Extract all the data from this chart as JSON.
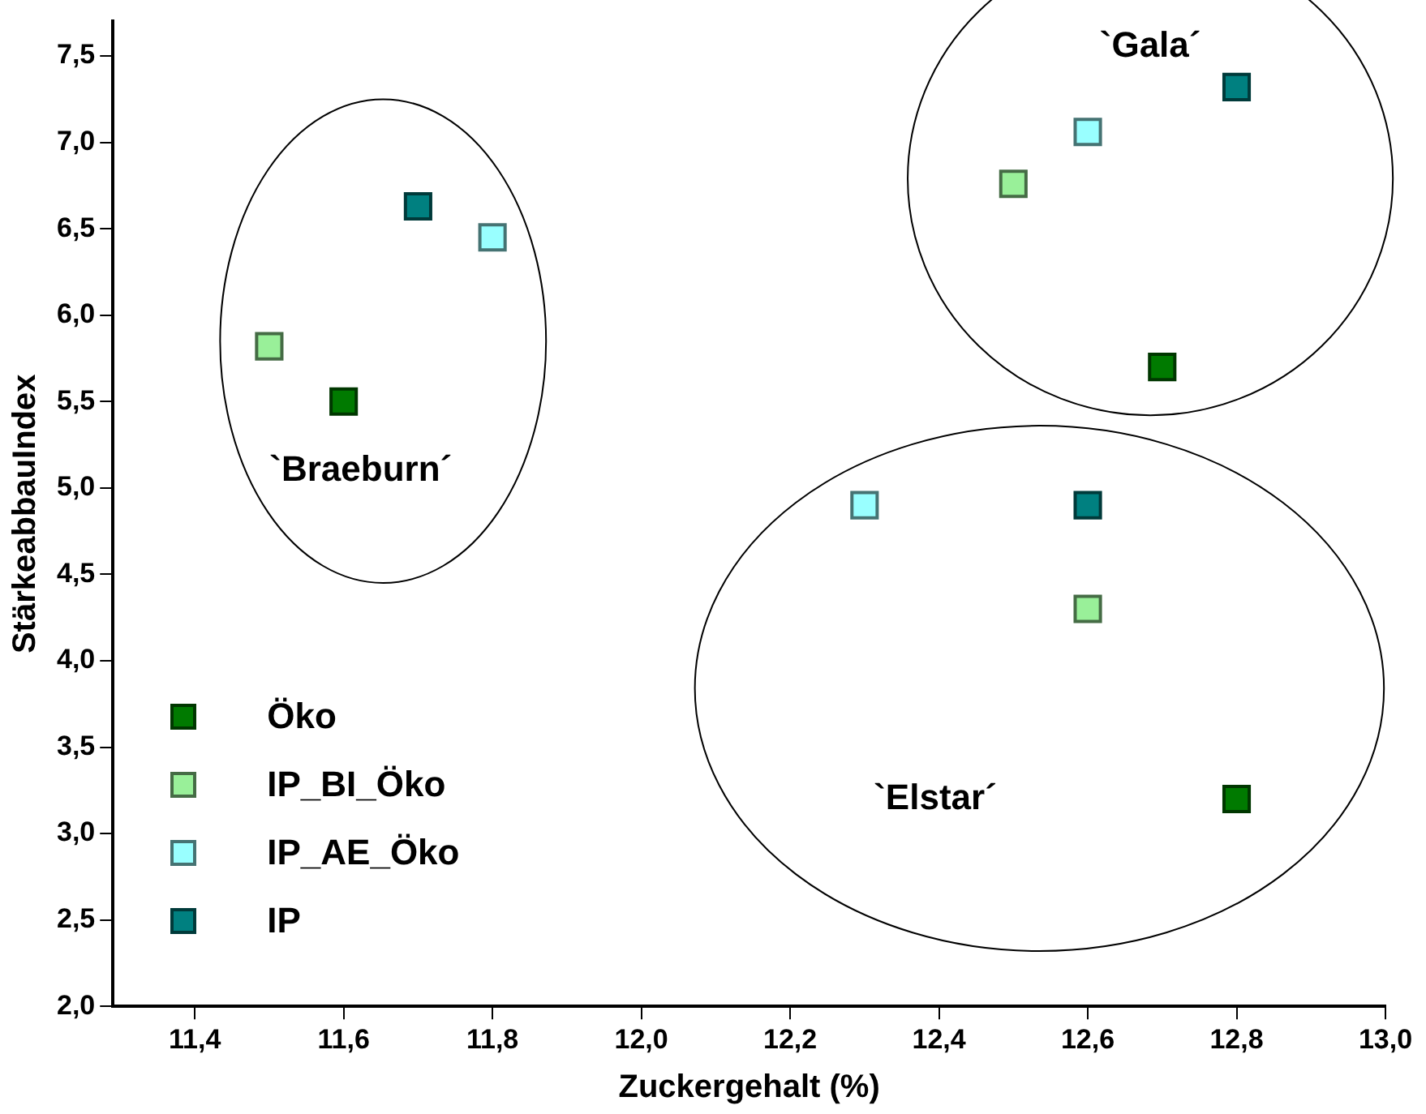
{
  "chart_data": {
    "type": "scatter",
    "xlabel": "Zuckergehalt (%)",
    "ylabel": "StärkeabbauIndex",
    "xlim": [
      11.29,
      13.0
    ],
    "xticks": [
      {
        "value": 11.4,
        "label": "11,4"
      },
      {
        "value": 11.6,
        "label": "11,6"
      },
      {
        "value": 11.8,
        "label": "11,8"
      },
      {
        "value": 12.0,
        "label": "12,0"
      },
      {
        "value": 12.2,
        "label": "12,2"
      },
      {
        "value": 12.4,
        "label": "12,4"
      },
      {
        "value": 12.6,
        "label": "12,6"
      },
      {
        "value": 12.8,
        "label": "12,8"
      },
      {
        "value": 13.0,
        "label": "13,0"
      }
    ],
    "ylim": [
      2.0,
      7.7
    ],
    "yticks": [
      {
        "value": 2.0,
        "label": "2,0"
      },
      {
        "value": 2.5,
        "label": "2,5"
      },
      {
        "value": 3.0,
        "label": "3,0"
      },
      {
        "value": 3.5,
        "label": "3,5"
      },
      {
        "value": 4.0,
        "label": "4,0"
      },
      {
        "value": 4.5,
        "label": "4,5"
      },
      {
        "value": 5.0,
        "label": "5,0"
      },
      {
        "value": 5.5,
        "label": "5,5"
      },
      {
        "value": 6.0,
        "label": "6,0"
      },
      {
        "value": 6.5,
        "label": "6,5"
      },
      {
        "value": 7.0,
        "label": "7,0"
      },
      {
        "value": 7.5,
        "label": "7,5"
      }
    ],
    "grid": false,
    "legend": "bottom left",
    "marker": "square",
    "series": [
      {
        "name": "Öko",
        "color": "#007a00",
        "x": [
          11.6,
          12.7,
          12.8
        ],
        "values": [
          5.5,
          5.7,
          3.2
        ]
      },
      {
        "name": "IP_BI_Öko",
        "color": "#99f099",
        "x": [
          11.5,
          12.5,
          12.6
        ],
        "values": [
          5.82,
          6.76,
          4.3
        ]
      },
      {
        "name": "IP_AE_Öko",
        "color": "#99ffff",
        "x": [
          11.8,
          12.6,
          12.3
        ],
        "values": [
          6.45,
          7.06,
          4.9
        ]
      },
      {
        "name": "IP",
        "color": "#008080",
        "x": [
          11.7,
          12.8,
          12.6
        ],
        "values": [
          6.63,
          7.32,
          4.9
        ]
      }
    ],
    "annotations": [
      "`Braeburn´",
      "`Gala´",
      "`Elstar´"
    ]
  }
}
